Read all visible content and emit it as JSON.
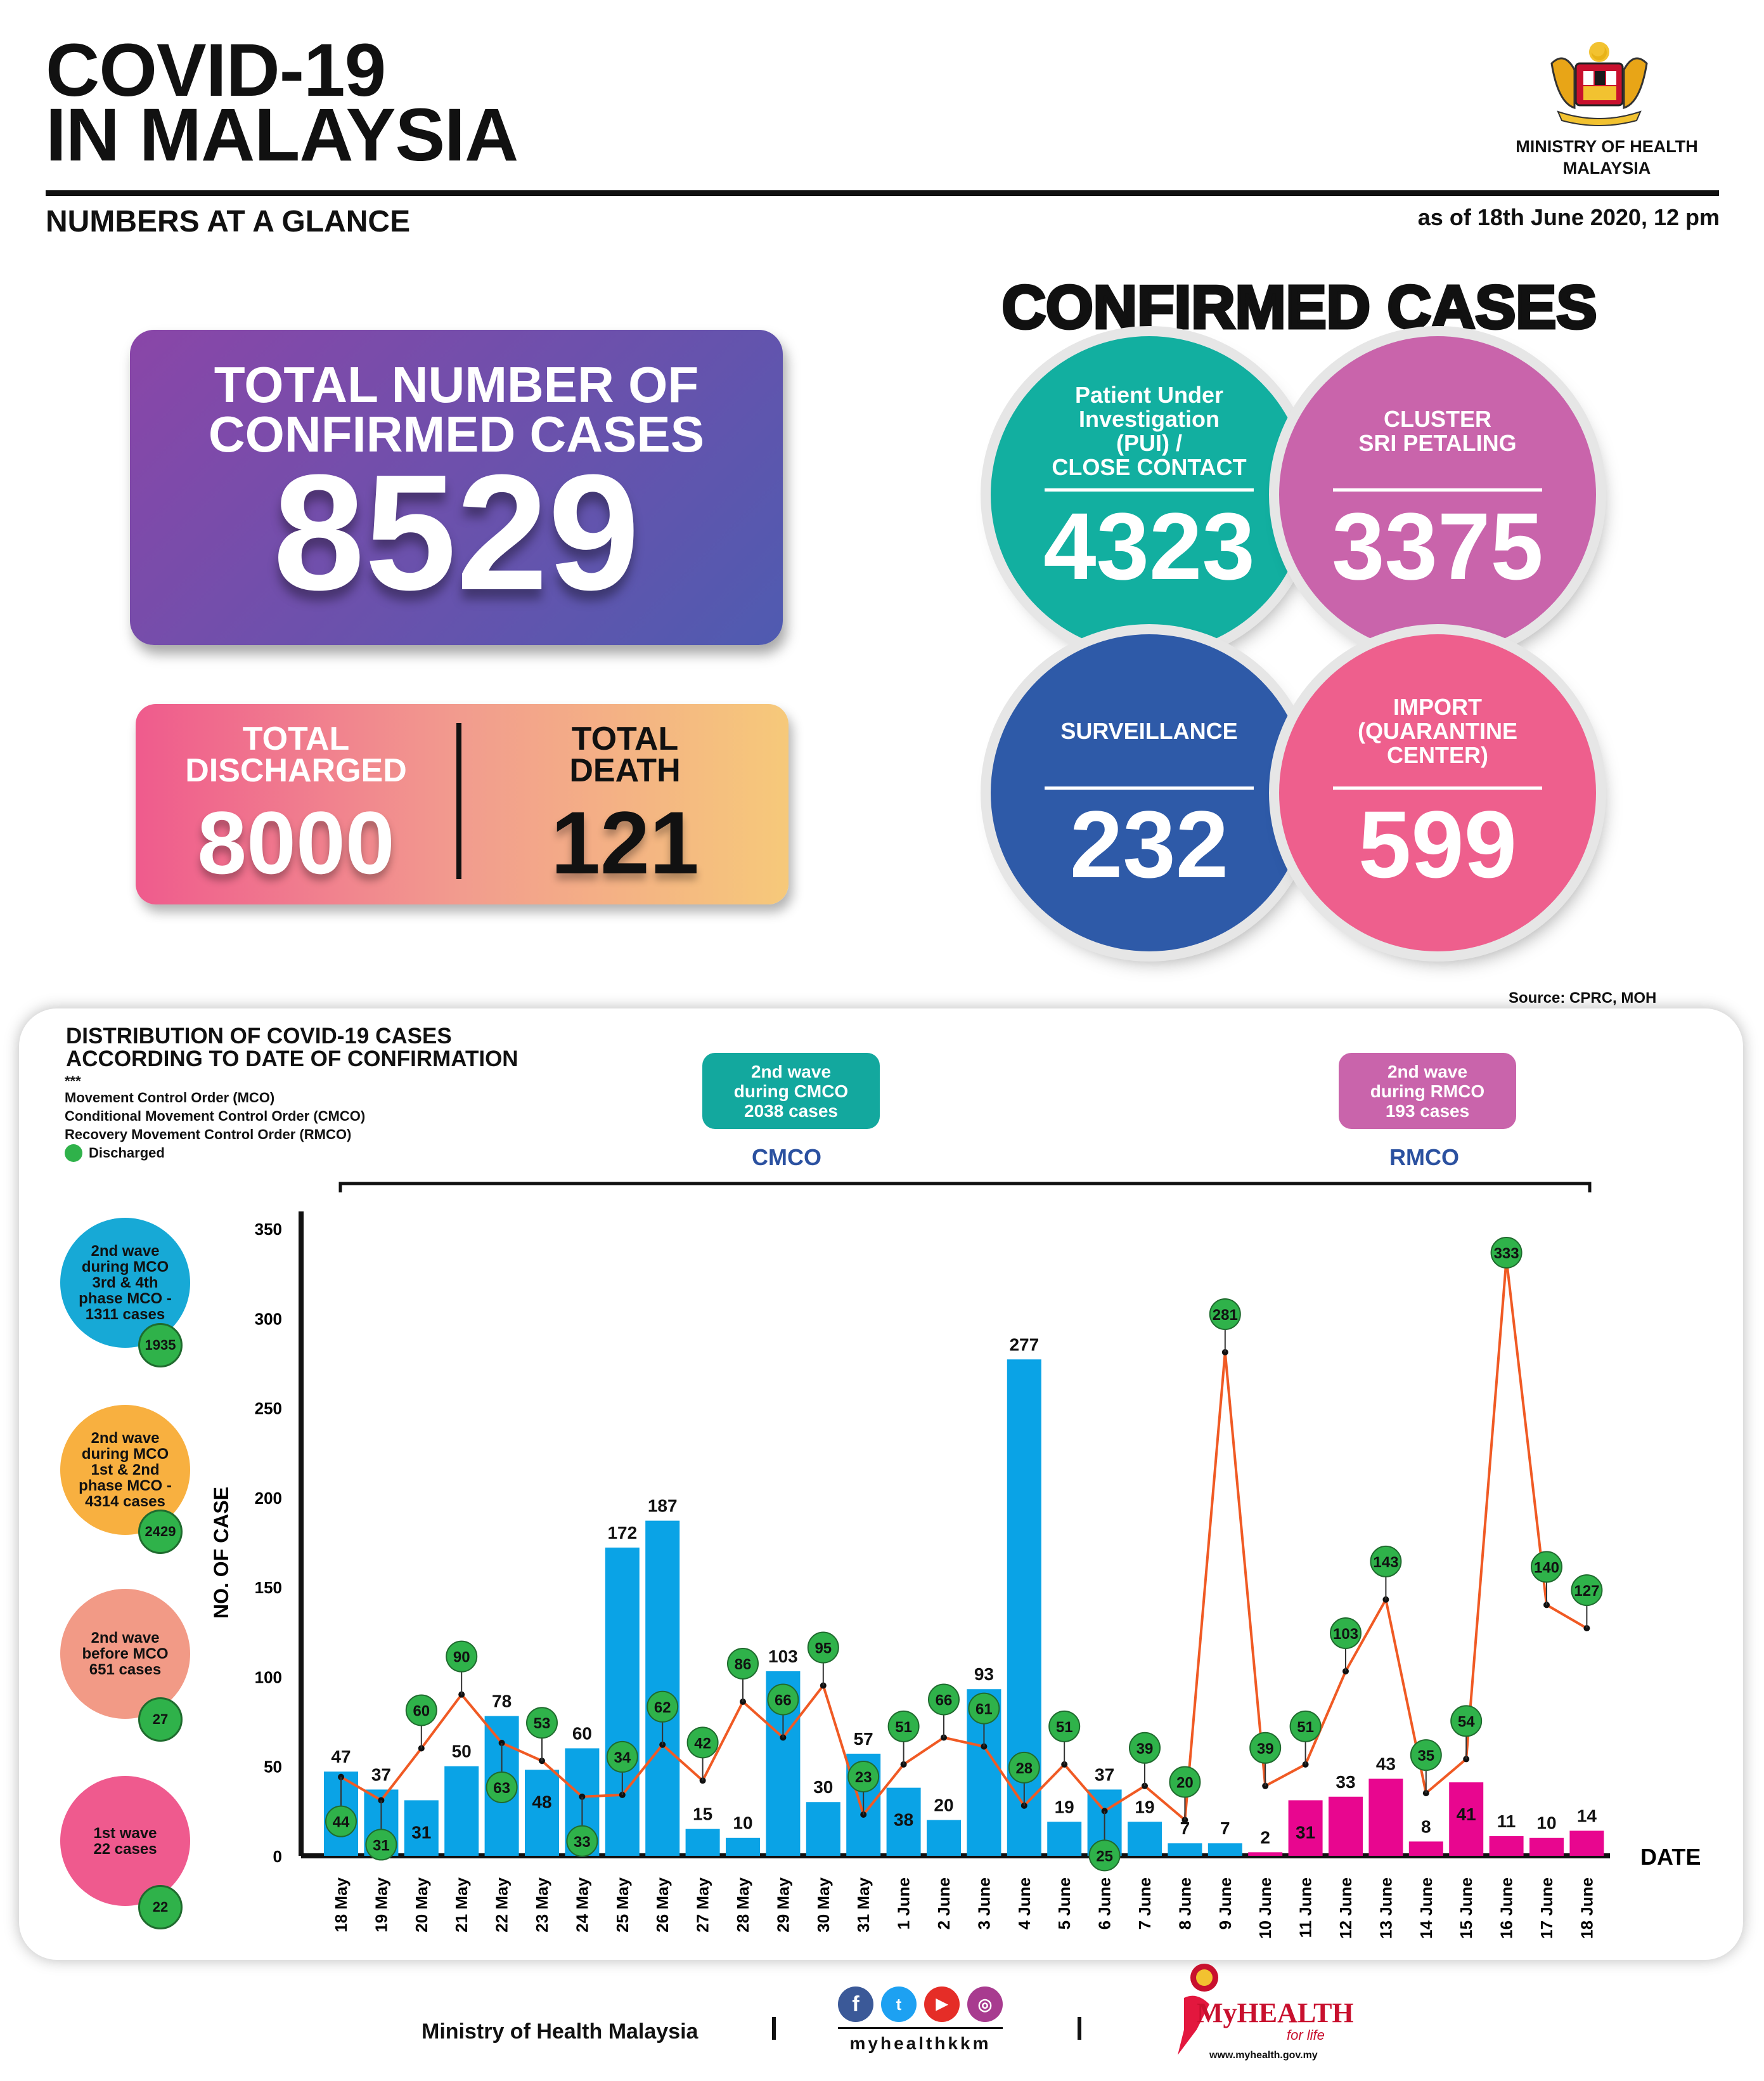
{
  "header": {
    "title_line1": "COVID-19",
    "title_line2": "IN MALAYSIA",
    "subtitle": "NUMBERS AT A GLANCE",
    "as_of": "as of 18th June 2020, 12 pm",
    "ministry_line1": "MINISTRY OF HEALTH",
    "ministry_line2": "MALAYSIA",
    "crest_icon": "malaysia-coat-of-arms"
  },
  "total": {
    "label_line1": "TOTAL NUMBER OF",
    "label_line2": "CONFIRMED CASES",
    "value": "8529"
  },
  "discharged": {
    "label_line1": "TOTAL",
    "label_line2": "DISCHARGED",
    "value": "8000"
  },
  "death": {
    "label_line1": "TOTAL",
    "label_line2": "DEATH",
    "value": "121"
  },
  "confirmed": {
    "title": "CONFIRMED CASES",
    "pui": {
      "l1": "Patient Under",
      "l2": "Investigation",
      "l3": "(PUI) /",
      "l4": "CLOSE CONTACT",
      "value": "4323",
      "color": "#12afa0"
    },
    "cluster": {
      "l1": "CLUSTER",
      "l2": "SRI PETALING",
      "value": "3375",
      "color": "#c964ab"
    },
    "surveillance": {
      "l1": "SURVEILLANCE",
      "value": "232",
      "color": "#2e5aa8"
    },
    "import": {
      "l1": "IMPORT",
      "l2": "(QUARANTINE",
      "l3": "CENTER)",
      "value": "599",
      "color": "#ee5f8d"
    }
  },
  "source": "Source: CPRC, MOH",
  "chart": {
    "title_line1": "DISTRIBUTION OF COVID-19 CASES",
    "title_line2": "ACCORDING TO DATE OF CONFIRMATION",
    "legend_stars": "***",
    "legend_mco": "Movement Control Order (MCO)",
    "legend_cmco": "Conditional Movement Control Order (CMCO)",
    "legend_rmco": "Recovery Movement Control Order (RMCO)",
    "legend_discharged": "Discharged",
    "cmco_box": {
      "l1": "2nd wave",
      "l2": "during CMCO",
      "l3": "2038 cases",
      "color": "#13a89e"
    },
    "rmco_box": {
      "l1": "2nd wave",
      "l2": "during RMCO",
      "l3": "193 cases",
      "color": "#c964ab"
    },
    "cmco_label": "CMCO",
    "rmco_label": "RMCO",
    "bubbles": [
      {
        "l1": "2nd wave",
        "l2": "during MCO",
        "l3": "3rd & 4th",
        "l4": "phase MCO -",
        "l5": "1311 cases",
        "num": "1935",
        "color": "#17a9d6"
      },
      {
        "l1": "2nd wave",
        "l2": "during MCO",
        "l3": "1st & 2nd",
        "l4": "phase MCO -",
        "l5": "4314 cases",
        "num": "2429",
        "color": "#f8b040"
      },
      {
        "l1": "2nd wave",
        "l2": "before MCO",
        "l3": "651 cases",
        "l4": "",
        "l5": "",
        "num": "27",
        "color": "#f29a86"
      },
      {
        "l1": "1st wave",
        "l2": "22 cases",
        "l3": "",
        "l4": "",
        "l5": "",
        "num": "22",
        "color": "#ef5a8e"
      }
    ]
  },
  "chart_data": {
    "type": "bar",
    "ylabel": "NO. OF CASE",
    "xlabel": "DATE",
    "ylim": [
      0,
      350
    ],
    "yticks": [
      0,
      50,
      100,
      150,
      200,
      250,
      300,
      350
    ],
    "categories": [
      "18 May",
      "19 May",
      "20 May",
      "21 May",
      "22 May",
      "23 May",
      "24 May",
      "25 May",
      "26 May",
      "27 May",
      "28 May",
      "29 May",
      "30 May",
      "31 May",
      "1 June",
      "2 June",
      "3 June",
      "4 June",
      "5 June",
      "6 June",
      "7 June",
      "8 June",
      "9 June",
      "10 June",
      "11 June",
      "12 June",
      "13 June",
      "14 June",
      "15 June",
      "16 June",
      "17 June",
      "18 June"
    ],
    "series": [
      {
        "name": "cases",
        "values": [
          47,
          37,
          31,
          50,
          78,
          48,
          60,
          172,
          187,
          15,
          10,
          103,
          30,
          57,
          38,
          20,
          93,
          277,
          19,
          37,
          19,
          7,
          7,
          2,
          31,
          33,
          43,
          8,
          41,
          11,
          10,
          14
        ]
      },
      {
        "name": "Discharged",
        "values": [
          44,
          31,
          60,
          90,
          63,
          53,
          33,
          34,
          62,
          42,
          86,
          66,
          95,
          23,
          51,
          66,
          61,
          28,
          51,
          25,
          39,
          20,
          281,
          39,
          51,
          103,
          143,
          35,
          54,
          333,
          140,
          127
        ]
      }
    ],
    "bar_colors": {
      "mco_cmco": "#0aa3e6",
      "rmco": "#e8068f"
    },
    "line_color": "#f05a24",
    "marker_color": "#2fb24a"
  },
  "footer": {
    "ministry": "Ministry of Health Malaysia",
    "handle": "myhealthkkm",
    "myhealth": "MyHEALTH",
    "for_life": "for life",
    "url": "www.myhealth.gov.my",
    "icons": [
      "facebook-icon",
      "twitter-icon",
      "youtube-icon",
      "instagram-icon"
    ]
  }
}
